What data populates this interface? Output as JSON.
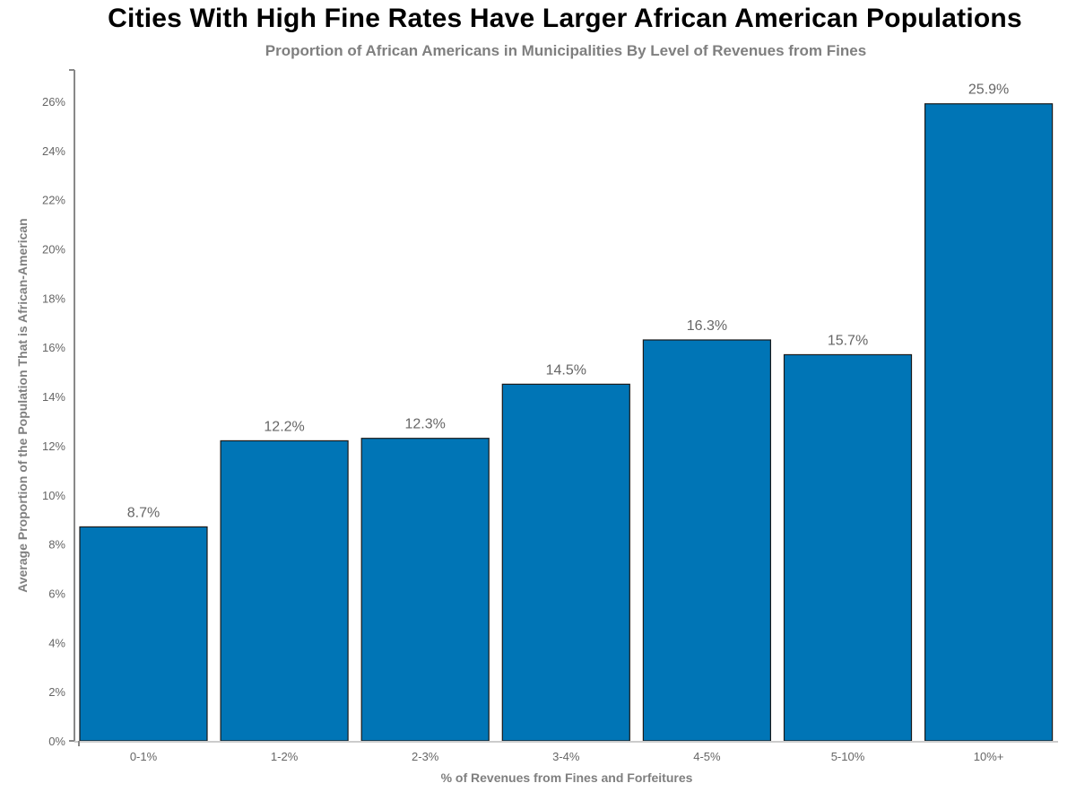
{
  "chart_data": {
    "type": "bar",
    "title": "Cities With High Fine Rates Have Larger African American Populations",
    "subtitle": "Proportion of African Americans in Municipalities By Level of Revenues from Fines",
    "xlabel": "% of Revenues from Fines and Forfeitures",
    "ylabel": "Average Proportion of the Population That is African-American",
    "categories": [
      "0-1%",
      "1-2%",
      "2-3%",
      "3-4%",
      "4-5%",
      "5-10%",
      "10%+"
    ],
    "values": [
      8.7,
      12.2,
      12.3,
      14.5,
      16.3,
      15.7,
      25.9
    ],
    "data_labels": [
      "8.7%",
      "12.2%",
      "12.3%",
      "14.5%",
      "16.3%",
      "15.7%",
      "25.9%"
    ],
    "ylim": [
      0,
      27.3
    ],
    "yticks": [
      0,
      2,
      4,
      6,
      8,
      10,
      12,
      14,
      16,
      18,
      20,
      22,
      24,
      26
    ],
    "ytick_labels": [
      "0%",
      "2%",
      "4%",
      "6%",
      "8%",
      "10%",
      "12%",
      "14%",
      "16%",
      "18%",
      "20%",
      "22%",
      "24%",
      "26%"
    ],
    "grid": false,
    "legend": "none",
    "bar_color": "#0075B6"
  }
}
